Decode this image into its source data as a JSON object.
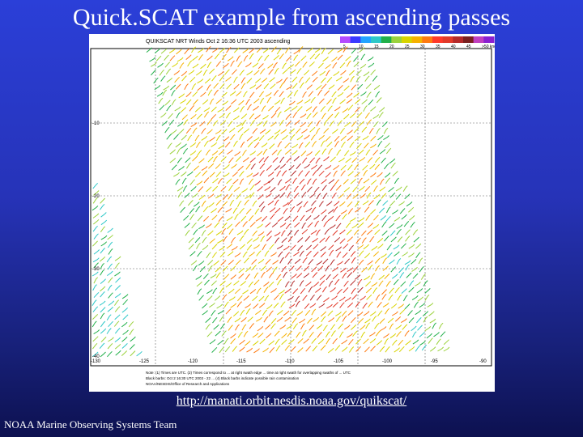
{
  "slide": {
    "title": "Quick.SCAT example from ascending passes",
    "url": "http://manati.orbit.nesdis.noaa.gov/quikscat/",
    "footer": "NOAA Marine Observing Systems Team"
  },
  "figure": {
    "header": "QUIKSCAT NRT Winds Oct  2 16:36 UTC 2003 ascending",
    "legend_colors": [
      "#b44bff",
      "#3a3aff",
      "#23a3ff",
      "#2ec8c8",
      "#22b04a",
      "#9bd23c",
      "#d8d400",
      "#f6b100",
      "#ff7a10",
      "#ff3a2a",
      "#e23a2a",
      "#b52a2a",
      "#7a2020",
      "#c040c0",
      "#8a20d0"
    ],
    "legend_values": [
      "5",
      "10",
      "15",
      "20",
      "25",
      "30",
      "35",
      "40",
      "45",
      ">50 knots"
    ],
    "lat_labels": [
      "-10",
      "-20",
      "-30",
      "-40"
    ],
    "lon_labels": [
      "-130",
      "-125",
      "-120",
      "-115",
      "-110",
      "-105",
      "-100",
      "-95",
      "-90"
    ],
    "footnote_lines": [
      "Note: (1) Times are UTC. (2) Times correspond to ... at right swath edge ... time at right swath for overlapping swaths of ... UTC",
      "Black barbs: Oct 2 16:30 UTC 2003 - 22 ... (4) Black barbs indicate possible rain contamination",
      "NOAA/NESDIS/Office of Research and Applications"
    ],
    "swath_colors": [
      "#d8d400",
      "#f6b100",
      "#ff7a10",
      "#e23a2a",
      "#9bd23c",
      "#22b04a",
      "#2ec8c8",
      "#b52a2a"
    ]
  }
}
